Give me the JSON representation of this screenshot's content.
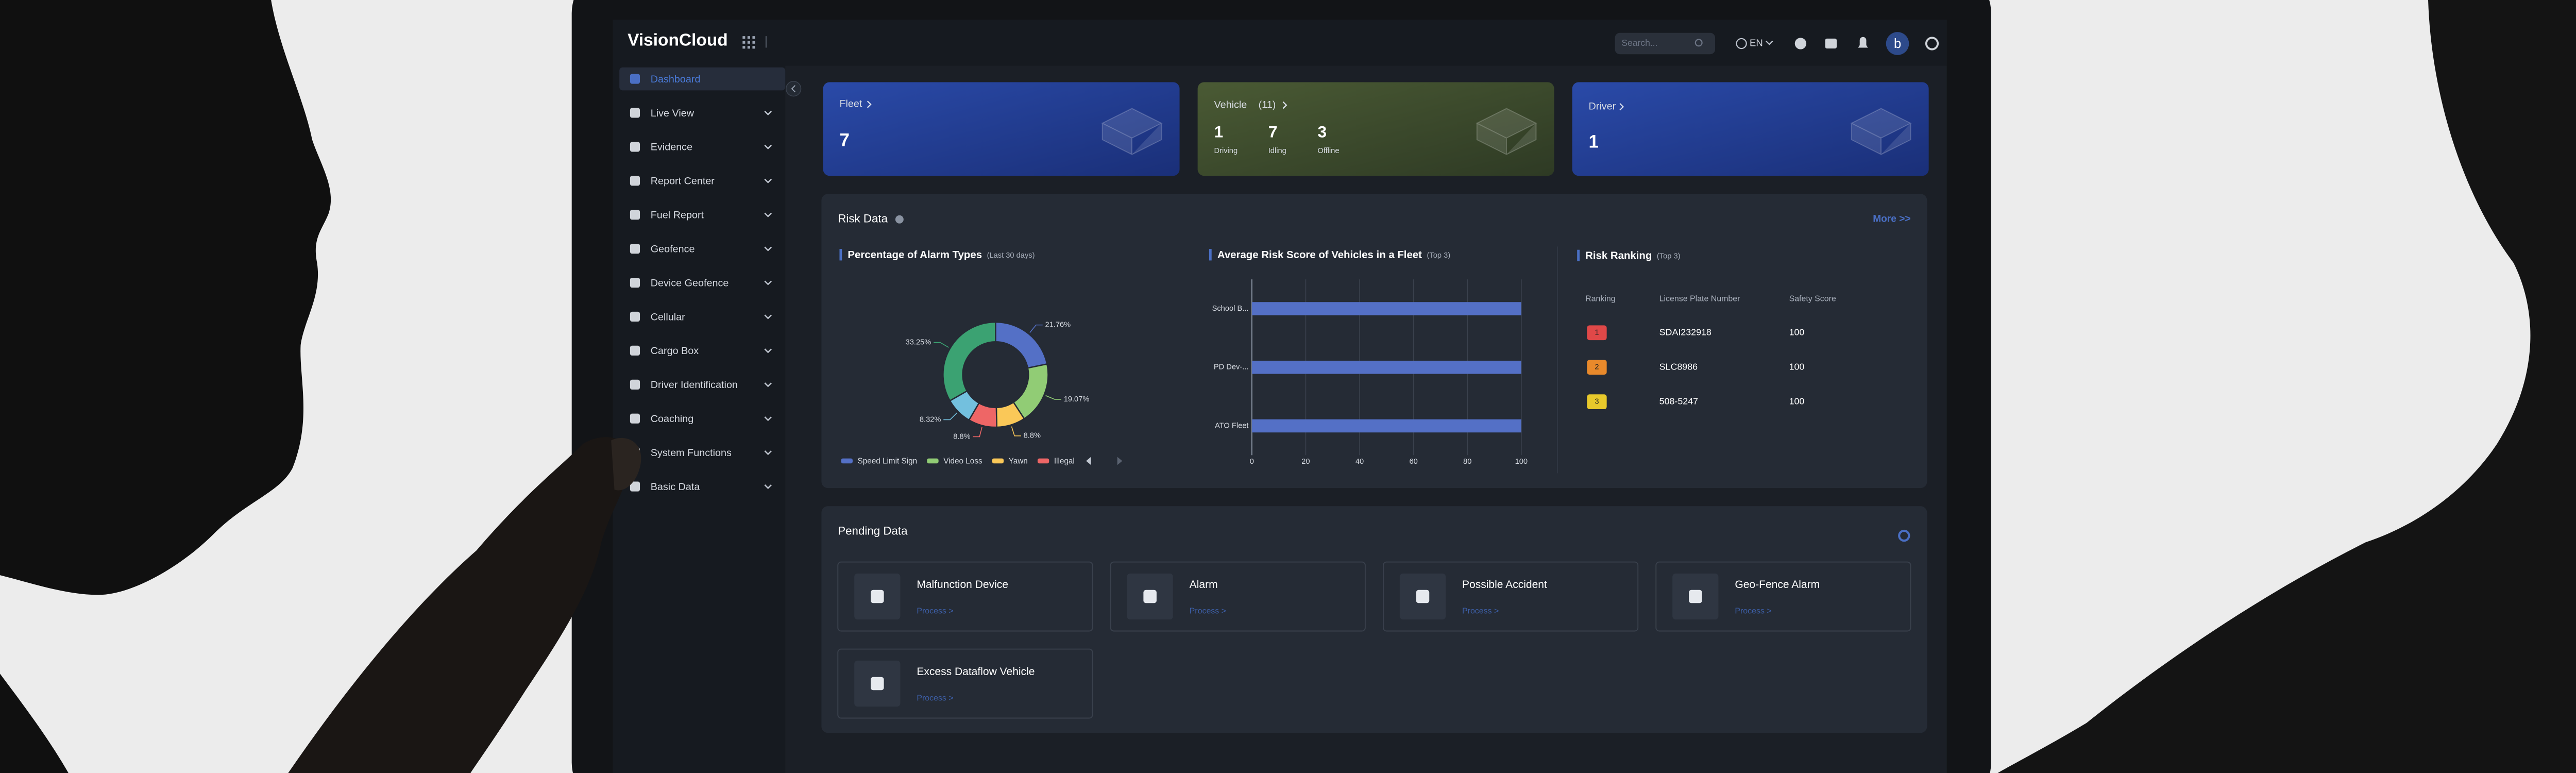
{
  "header": {
    "brand": "VisionCloud",
    "search_placeholder": "Search...",
    "language": "EN",
    "avatar": "b"
  },
  "sidebar": {
    "items": [
      "Dashboard",
      "Live View",
      "Evidence",
      "Report Center",
      "Fuel Report",
      "Geofence",
      "Device Geofence",
      "Cellular",
      "Cargo Box",
      "Driver Identification",
      "Coaching",
      "System Functions",
      "Basic Data"
    ]
  },
  "summary_cards": {
    "fleet": {
      "title": "Fleet",
      "value": 7
    },
    "vehicle": {
      "title": "Vehicle",
      "count": "(11)",
      "stats": [
        {
          "value": 1,
          "label": "Driving"
        },
        {
          "value": 7,
          "label": "Idling"
        },
        {
          "value": 3,
          "label": "Offline"
        }
      ]
    },
    "driver": {
      "title": "Driver",
      "value": 1
    }
  },
  "risk_data": {
    "title": "Risk Data",
    "more": "More >>",
    "ranking": {
      "title": "Risk Ranking",
      "subtitle": "(Top 3)",
      "columns": [
        "Ranking",
        "License Plate Number",
        "Safety Score"
      ],
      "rows": [
        [
          1,
          "SDAI232918",
          100
        ],
        [
          2,
          "SLC8986",
          100
        ],
        [
          3,
          "508-5247",
          100
        ]
      ],
      "badge_colors": [
        "#e04848",
        "#e8892b",
        "#e8c92b"
      ]
    }
  },
  "chart_data": [
    {
      "type": "pie",
      "donut": true,
      "title": "Percentage of Alarm Types",
      "subtitle": "(Last 30 days)",
      "categories": [
        "Speed Limit Sign",
        "Video Loss",
        "Yawn",
        "Illegal",
        null,
        null
      ],
      "values": [
        21.76,
        19.07,
        8.8,
        8.8,
        8.32,
        33.25
      ],
      "value_labels": [
        "21.76%",
        "19.07%",
        "8.8%",
        "8.8%",
        "8.32%",
        "33.25%"
      ],
      "colors": [
        "#5470c6",
        "#91cc75",
        "#fac858",
        "#ee6666",
        "#73c0de",
        "#3ba272"
      ]
    },
    {
      "type": "bar",
      "orientation": "horizontal",
      "title": "Average Risk Score of Vehicles in a Fleet",
      "subtitle": "(Top 3)",
      "categories": [
        "School B...",
        "PD Dev-...",
        "ATO Fleet"
      ],
      "values": [
        100,
        100,
        100
      ],
      "color": "#5470c6",
      "xlim": [
        0,
        100
      ],
      "xticks": [
        0,
        20,
        40,
        60,
        80,
        100
      ],
      "grid": true
    }
  ],
  "pending_data": {
    "title": "Pending Data",
    "items": [
      {
        "title": "Malfunction Device",
        "action": "Process >"
      },
      {
        "title": "Alarm",
        "action": "Process >"
      },
      {
        "title": "Possible Accident",
        "action": "Process >"
      },
      {
        "title": "Geo-Fence Alarm",
        "action": "Process >"
      },
      {
        "title": "Excess Dataflow Vehicle",
        "action": "Process >"
      }
    ]
  }
}
